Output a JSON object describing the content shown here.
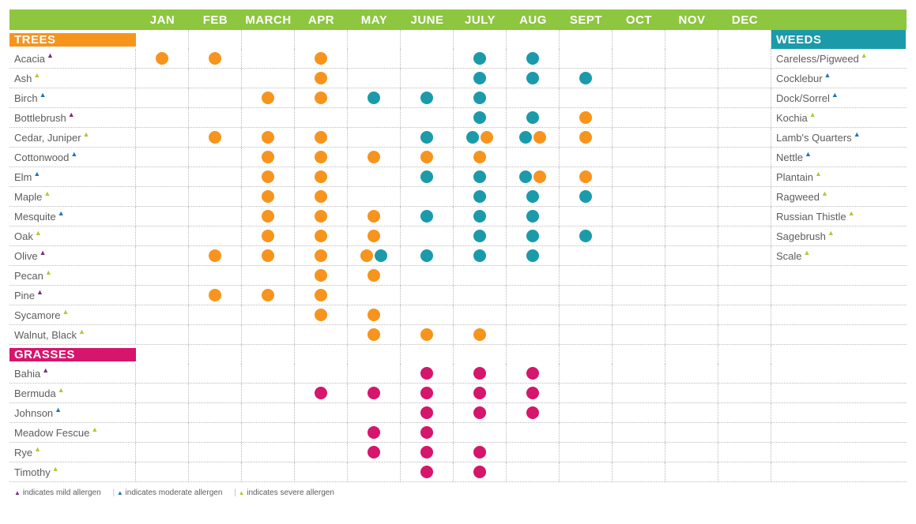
{
  "colors": {
    "header_bg": "#8dc63f",
    "trees_bg": "#f7941d",
    "grasses_bg": "#d6156c",
    "weeds_bg": "#1b9aaa",
    "dot_orange": "#f7941d",
    "dot_teal": "#1b9aaa",
    "dot_magenta": "#d6156c",
    "marker_mild": "#7b2d7b",
    "marker_moderate": "#1b75bb",
    "marker_severe": "#a6ce39",
    "text_label": "#5d5d5d",
    "border": "#bbbbbb"
  },
  "months": [
    "JAN",
    "FEB",
    "MARCH",
    "APR",
    "MAY",
    "JUNE",
    "JULY",
    "AUG",
    "SEPT",
    "OCT",
    "NOV",
    "DEC"
  ],
  "sections": {
    "trees": {
      "title": "TREES",
      "bg": "#f7941d"
    },
    "grasses": {
      "title": "GRASSES",
      "bg": "#d6156c"
    },
    "weeds": {
      "title": "WEEDS",
      "bg": "#1b9aaa"
    }
  },
  "trees": [
    {
      "name": "Acacia",
      "severity": "mild",
      "dots": {
        "jan": [
          "orange"
        ],
        "feb": [
          "orange"
        ],
        "apr": [
          "orange"
        ],
        "jul": [
          "teal"
        ],
        "aug": [
          "teal"
        ]
      }
    },
    {
      "name": "Ash",
      "severity": "severe",
      "dots": {
        "apr": [
          "orange"
        ],
        "jul": [
          "teal"
        ],
        "aug": [
          "teal"
        ],
        "sept": [
          "teal"
        ]
      }
    },
    {
      "name": "Birch",
      "severity": "moderate",
      "dots": {
        "march": [
          "orange"
        ],
        "apr": [
          "orange"
        ],
        "may": [
          "teal"
        ],
        "june": [
          "teal"
        ],
        "jul": [
          "teal"
        ]
      }
    },
    {
      "name": "Bottlebrush",
      "severity": "mild",
      "dots": {
        "jul": [
          "teal"
        ],
        "aug": [
          "teal"
        ],
        "sept": [
          "orange"
        ]
      }
    },
    {
      "name": "Cedar, Juniper",
      "severity": "severe",
      "dots": {
        "feb": [
          "orange"
        ],
        "march": [
          "orange"
        ],
        "apr": [
          "orange"
        ],
        "june": [
          "teal"
        ],
        "jul": [
          "teal",
          "orange"
        ],
        "aug": [
          "teal",
          "orange"
        ],
        "sept": [
          "orange"
        ]
      }
    },
    {
      "name": "Cottonwood",
      "severity": "moderate",
      "dots": {
        "march": [
          "orange"
        ],
        "apr": [
          "orange"
        ],
        "may": [
          "orange"
        ],
        "june": [
          "orange"
        ],
        "jul": [
          "orange"
        ]
      }
    },
    {
      "name": "Elm",
      "severity": "moderate",
      "dots": {
        "march": [
          "orange"
        ],
        "apr": [
          "orange"
        ],
        "june": [
          "teal"
        ],
        "jul": [
          "teal"
        ],
        "aug": [
          "teal",
          "orange"
        ],
        "sept": [
          "orange"
        ]
      }
    },
    {
      "name": "Maple",
      "severity": "severe",
      "dots": {
        "march": [
          "orange"
        ],
        "apr": [
          "orange"
        ],
        "jul": [
          "teal"
        ],
        "aug": [
          "teal"
        ],
        "sept": [
          "teal"
        ]
      }
    },
    {
      "name": "Mesquite",
      "severity": "moderate",
      "dots": {
        "march": [
          "orange"
        ],
        "apr": [
          "orange"
        ],
        "may": [
          "orange"
        ],
        "june": [
          "teal"
        ],
        "jul": [
          "teal"
        ],
        "aug": [
          "teal"
        ]
      }
    },
    {
      "name": "Oak",
      "severity": "severe",
      "dots": {
        "march": [
          "orange"
        ],
        "apr": [
          "orange"
        ],
        "may": [
          "orange"
        ],
        "jul": [
          "teal"
        ],
        "aug": [
          "teal"
        ],
        "sept": [
          "teal"
        ]
      }
    },
    {
      "name": "Olive",
      "severity": "mild",
      "dots": {
        "feb": [
          "orange"
        ],
        "march": [
          "orange"
        ],
        "apr": [
          "orange"
        ],
        "may": [
          "orange",
          "teal"
        ],
        "june": [
          "teal"
        ],
        "jul": [
          "teal"
        ],
        "aug": [
          "teal"
        ]
      }
    },
    {
      "name": "Pecan",
      "severity": "severe",
      "dots": {
        "apr": [
          "orange"
        ],
        "may": [
          "orange"
        ]
      }
    },
    {
      "name": "Pine",
      "severity": "mild",
      "dots": {
        "feb": [
          "orange"
        ],
        "march": [
          "orange"
        ],
        "apr": [
          "orange"
        ]
      }
    },
    {
      "name": "Sycamore",
      "severity": "severe",
      "dots": {
        "apr": [
          "orange"
        ],
        "may": [
          "orange"
        ]
      }
    },
    {
      "name": "Walnut, Black",
      "severity": "severe",
      "dots": {
        "may": [
          "orange"
        ],
        "june": [
          "orange"
        ],
        "jul": [
          "orange"
        ]
      }
    }
  ],
  "grasses": [
    {
      "name": "Bahia",
      "severity": "mild",
      "dots": {
        "june": [
          "magenta"
        ],
        "jul": [
          "magenta"
        ],
        "aug": [
          "magenta"
        ]
      }
    },
    {
      "name": "Bermuda",
      "severity": "severe",
      "dots": {
        "apr": [
          "magenta"
        ],
        "may": [
          "magenta"
        ],
        "june": [
          "magenta"
        ],
        "jul": [
          "magenta"
        ],
        "aug": [
          "magenta"
        ]
      }
    },
    {
      "name": "Johnson",
      "severity": "moderate",
      "dots": {
        "june": [
          "magenta"
        ],
        "jul": [
          "magenta"
        ],
        "aug": [
          "magenta"
        ]
      }
    },
    {
      "name": "Meadow Fescue",
      "severity": "severe",
      "dots": {
        "may": [
          "magenta"
        ],
        "june": [
          "magenta"
        ]
      }
    },
    {
      "name": "Rye",
      "severity": "severe",
      "dots": {
        "may": [
          "magenta"
        ],
        "june": [
          "magenta"
        ],
        "jul": [
          "magenta"
        ]
      }
    },
    {
      "name": "Timothy",
      "severity": "severe",
      "dots": {
        "june": [
          "magenta"
        ],
        "jul": [
          "magenta"
        ]
      }
    }
  ],
  "weeds": [
    {
      "name": "Careless/Pigweed",
      "severity": "severe"
    },
    {
      "name": "Cocklebur",
      "severity": "moderate"
    },
    {
      "name": "Dock/Sorrel",
      "severity": "moderate"
    },
    {
      "name": "Kochia",
      "severity": "severe"
    },
    {
      "name": "Lamb's Quarters",
      "severity": "moderate"
    },
    {
      "name": "Nettle",
      "severity": "moderate"
    },
    {
      "name": "Plantain",
      "severity": "severe"
    },
    {
      "name": "Ragweed",
      "severity": "severe"
    },
    {
      "name": "Russian Thistle",
      "severity": "severe"
    },
    {
      "name": "Sagebrush",
      "severity": "severe"
    },
    {
      "name": "Scale",
      "severity": "severe"
    }
  ],
  "legend": {
    "mild": "indicates mild allergen",
    "moderate": "indicates moderate allergen",
    "severe": "indicates severe allergen"
  }
}
